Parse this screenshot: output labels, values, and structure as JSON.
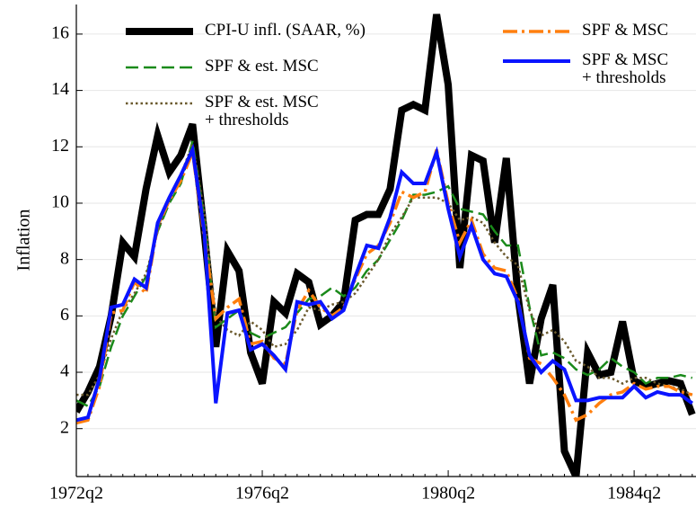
{
  "chart_data": {
    "type": "line",
    "y_label": "Inflation",
    "categories": [
      "1972q2",
      null,
      null,
      null,
      null,
      null,
      null,
      null,
      null,
      null,
      null,
      null,
      null,
      null,
      null,
      null,
      "1976q2",
      null,
      null,
      null,
      null,
      null,
      null,
      null,
      null,
      null,
      null,
      null,
      null,
      null,
      null,
      null,
      "1980q2",
      null,
      null,
      null,
      null,
      null,
      null,
      null,
      null,
      null,
      null,
      null,
      null,
      null,
      null,
      null,
      "1984q2",
      null,
      null,
      null,
      null,
      null
    ],
    "ylim": [
      0.3,
      17.05
    ],
    "yticks": [
      2,
      4,
      6,
      8,
      10,
      12,
      14,
      16
    ],
    "grid": true,
    "series": [
      {
        "name": "CPI-U infl. (SAAR, %)",
        "color": "#000000",
        "linewidth": 8,
        "dash": "solid",
        "values": [
          2.6,
          3.3,
          4.2,
          6.0,
          8.6,
          8.1,
          10.5,
          12.4,
          11.1,
          11.7,
          12.8,
          9.0,
          4.9,
          8.3,
          7.6,
          4.7,
          3.6,
          6.5,
          6.1,
          7.5,
          7.2,
          5.7,
          6.0,
          6.5,
          9.4,
          9.6,
          9.6,
          10.5,
          13.3,
          13.5,
          13.3,
          16.7,
          14.2,
          7.7,
          11.7,
          11.5,
          8.6,
          11.6,
          6.7,
          3.6,
          5.9,
          7.1,
          1.2,
          0.3,
          4.7,
          3.9,
          4.0,
          5.8,
          3.7,
          3.5,
          3.6,
          3.7,
          3.6,
          2.5
        ]
      },
      {
        "name": "SPF & est. MSC",
        "color": "#1a8a1a",
        "linewidth": 2.5,
        "dash": "dashed",
        "values": [
          3.0,
          2.8,
          3.5,
          4.9,
          6.0,
          6.7,
          7.4,
          9.0,
          10.0,
          10.7,
          12.2,
          9.5,
          5.6,
          5.9,
          6.2,
          5.4,
          5.2,
          5.4,
          5.6,
          6.1,
          6.6,
          6.7,
          7.0,
          6.7,
          7.0,
          7.6,
          8.0,
          8.7,
          9.4,
          10.3,
          10.3,
          10.4,
          10.6,
          9.8,
          9.7,
          9.6,
          9.0,
          8.5,
          8.5,
          6.3,
          4.6,
          4.7,
          4.5,
          4.1,
          3.9,
          4.1,
          4.5,
          4.2,
          4.0,
          3.6,
          3.8,
          3.8,
          3.9,
          3.8
        ]
      },
      {
        "name": "SPF & est. MSC\n+ thresholds",
        "color": "#6b5a2e",
        "linewidth": 2.5,
        "dash": "dotted",
        "values": [
          3.2,
          3.2,
          3.9,
          5.2,
          6.2,
          6.8,
          7.5,
          9.0,
          10.1,
          11.0,
          12.1,
          9.7,
          6.0,
          5.5,
          5.3,
          5.8,
          5.5,
          4.9,
          5.0,
          5.5,
          6.3,
          6.2,
          6.4,
          6.5,
          6.8,
          7.4,
          8.0,
          8.9,
          9.5,
          10.2,
          10.2,
          10.2,
          10.0,
          9.4,
          9.5,
          9.3,
          8.6,
          8.1,
          7.8,
          6.2,
          5.3,
          5.5,
          5.1,
          4.4,
          4.2,
          3.8,
          3.8,
          3.6,
          3.8,
          3.8,
          3.6,
          3.5,
          3.4,
          3.2
        ]
      },
      {
        "name": "SPF & MSC",
        "color": "#ff7f0e",
        "linewidth": 3.5,
        "dash": "dashdot",
        "values": [
          2.2,
          2.3,
          3.5,
          6.1,
          6.2,
          7.2,
          6.8,
          9.2,
          10.1,
          10.8,
          11.8,
          8.8,
          5.9,
          6.3,
          6.6,
          5.0,
          5.1,
          4.5,
          4.3,
          6.2,
          6.9,
          6.3,
          6.0,
          6.3,
          7.3,
          8.2,
          8.5,
          9.3,
          10.4,
          10.2,
          10.4,
          11.9,
          10.0,
          8.6,
          9.4,
          8.2,
          7.7,
          7.6,
          6.6,
          4.5,
          4.3,
          3.8,
          3.2,
          2.3,
          2.5,
          2.9,
          3.2,
          3.3,
          3.6,
          3.4,
          3.5,
          3.5,
          3.3,
          3.2
        ]
      },
      {
        "name": "SPF & MSC\n+ thresholds",
        "color": "#0a14ff",
        "linewidth": 4,
        "dash": "solid",
        "values": [
          2.3,
          2.4,
          3.8,
          6.3,
          6.4,
          7.3,
          7.0,
          9.3,
          10.2,
          11.0,
          11.9,
          9.0,
          2.9,
          6.1,
          6.2,
          4.8,
          5.0,
          4.6,
          4.1,
          6.5,
          6.4,
          6.5,
          5.9,
          6.2,
          7.4,
          8.5,
          8.4,
          9.5,
          11.1,
          10.7,
          10.7,
          11.8,
          9.8,
          8.1,
          9.2,
          8.0,
          7.5,
          7.4,
          6.5,
          4.6,
          4.0,
          4.4,
          4.1,
          3.0,
          3.0,
          3.1,
          3.1,
          3.1,
          3.5,
          3.1,
          3.3,
          3.2,
          3.2,
          2.9
        ]
      }
    ]
  }
}
